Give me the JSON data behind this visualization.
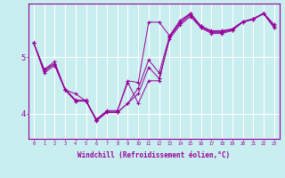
{
  "xlabel": "Windchill (Refroidissement éolien,°C)",
  "line_color": "#990099",
  "bg_color": "#c8eef0",
  "grid_color": "#ffffff",
  "x_ticks": [
    0,
    1,
    2,
    3,
    4,
    5,
    6,
    7,
    8,
    9,
    10,
    11,
    12,
    13,
    14,
    15,
    16,
    17,
    18,
    19,
    20,
    21,
    22,
    23
  ],
  "y_ticks": [
    4,
    5
  ],
  "ylim": [
    3.55,
    5.95
  ],
  "xlim": [
    -0.5,
    23.5
  ],
  "series": [
    [
      5.25,
      4.78,
      4.92,
      4.42,
      4.22,
      4.22,
      3.88,
      4.02,
      4.02,
      4.18,
      4.35,
      4.82,
      4.62,
      5.32,
      5.57,
      5.72,
      5.52,
      5.42,
      5.42,
      5.47,
      5.62,
      5.67,
      5.77,
      5.52
    ],
    [
      5.25,
      4.75,
      4.88,
      4.42,
      4.22,
      4.22,
      3.87,
      4.02,
      4.02,
      4.18,
      4.45,
      4.95,
      4.72,
      5.37,
      5.62,
      5.77,
      5.55,
      5.45,
      5.45,
      5.5,
      5.63,
      5.68,
      5.78,
      5.55
    ],
    [
      5.25,
      4.78,
      4.88,
      4.44,
      4.24,
      4.24,
      3.88,
      4.04,
      4.04,
      4.55,
      4.18,
      4.58,
      4.58,
      5.35,
      5.6,
      5.75,
      5.53,
      5.44,
      5.44,
      5.48,
      5.62,
      5.67,
      5.77,
      5.53
    ],
    [
      5.25,
      4.72,
      4.85,
      4.42,
      4.35,
      4.22,
      3.9,
      4.05,
      4.05,
      4.58,
      4.55,
      5.62,
      5.62,
      5.38,
      5.65,
      5.78,
      5.55,
      5.47,
      5.47,
      5.5,
      5.63,
      5.68,
      5.78,
      5.58
    ]
  ]
}
